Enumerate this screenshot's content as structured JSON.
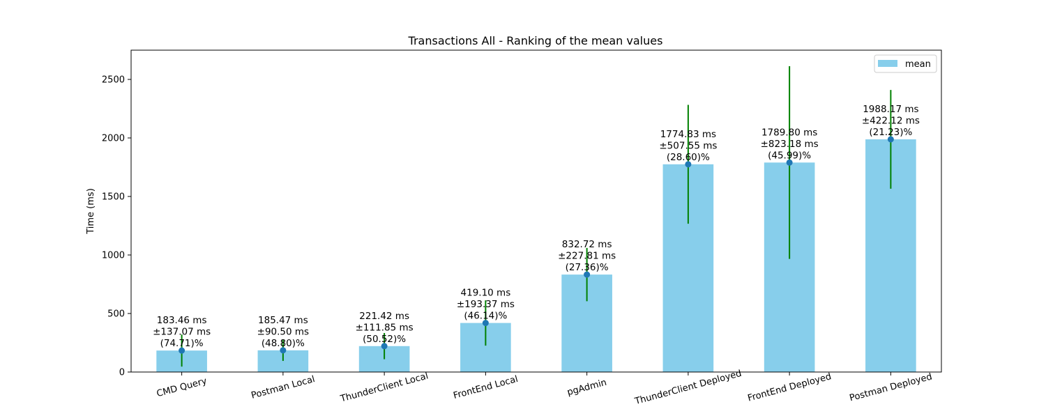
{
  "chart_data": {
    "type": "bar",
    "title": "Transactions All - Ranking of the mean values",
    "xlabel": "",
    "ylabel": "Time (ms)",
    "ylim": [
      0,
      2750
    ],
    "yticks": [
      0,
      500,
      1000,
      1500,
      2000,
      2500
    ],
    "legend": {
      "position": "top-right",
      "entries": [
        "mean"
      ]
    },
    "grid": false,
    "colors": {
      "bar": "#87ceeb",
      "error_bar": "#008000",
      "marker": "#1f77b4"
    },
    "categories": [
      "CMD Query",
      "Postman Local",
      "ThunderClient Local",
      "FrontEnd Local",
      "pgAdmin",
      "ThunderClient Deployed",
      "FrontEnd Deployed",
      "Postman Deployed"
    ],
    "series": [
      {
        "name": "mean",
        "values": [
          183.46,
          185.47,
          221.42,
          419.1,
          832.72,
          1774.83,
          1789.8,
          1988.17
        ],
        "errors": [
          137.07,
          90.5,
          111.85,
          193.37,
          227.81,
          507.55,
          823.18,
          422.12
        ],
        "labels": [
          [
            "183.46 ms",
            "±137.07 ms",
            "(74.71)%"
          ],
          [
            "185.47 ms",
            "±90.50 ms",
            "(48.80)%"
          ],
          [
            "221.42 ms",
            "±111.85 ms",
            "(50.52)%"
          ],
          [
            "419.10 ms",
            "±193.37 ms",
            "(46.14)%"
          ],
          [
            "832.72 ms",
            "±227.81 ms",
            "(27.36)%"
          ],
          [
            "1774.83 ms",
            "±507.55 ms",
            "(28.60)%"
          ],
          [
            "1789.80 ms",
            "±823.18 ms",
            "(45.99)%"
          ],
          [
            "1988.17 ms",
            "±422.12 ms",
            "(21.23)%"
          ]
        ]
      }
    ]
  }
}
